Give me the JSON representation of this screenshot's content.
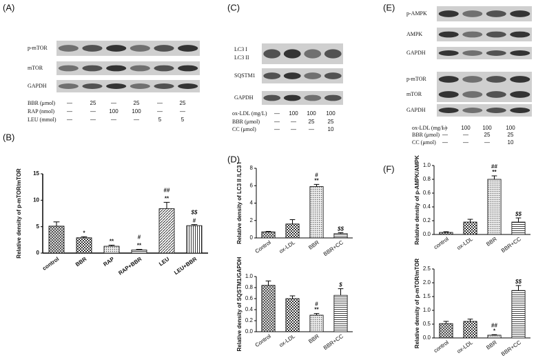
{
  "panel_labels": [
    "(A)",
    "(B)",
    "(C)",
    "(D)",
    "(E)",
    "(F)"
  ],
  "blots": [
    {
      "rows": [
        "p-mTOR",
        "mTOR",
        "GAPDH"
      ],
      "conditions": [
        {
          "label": "BBR (μmol)",
          "values": [
            "—",
            "25",
            "—",
            "25",
            "—",
            "25"
          ]
        },
        {
          "label": "RAP (nmol)",
          "values": [
            "—",
            "—",
            "100",
            "100",
            "—",
            "—"
          ]
        },
        {
          "label": "LEU (mmol)",
          "values": [
            "—",
            "—",
            "—",
            "—",
            "5",
            "5"
          ]
        }
      ]
    },
    {
      "rows": [
        "LC3 I",
        "LC3 II",
        "SQSTM1",
        "GAPDH"
      ],
      "conditions": [
        {
          "label": "ox-LDL (mg/L)",
          "values": [
            "—",
            "100",
            "100",
            "100"
          ]
        },
        {
          "label": "BBR (μmol)",
          "values": [
            "—",
            "—",
            "25",
            "25"
          ]
        },
        {
          "label": "CC (μmol)",
          "values": [
            "—",
            "—",
            "—",
            "10"
          ]
        }
      ]
    },
    {
      "rows": [
        "p-AMPK",
        "AMPK",
        "GAPDH",
        "p-mTOR",
        "mTOR",
        "GAPDH"
      ],
      "conditions": [
        {
          "label": "ox-LDL (mg/L)",
          "values": [
            "—",
            "100",
            "100",
            "100"
          ]
        },
        {
          "label": "BBR (μmol)",
          "values": [
            "—",
            "—",
            "25",
            "25"
          ]
        },
        {
          "label": "CC (μmol)",
          "values": [
            "—",
            "—",
            "—",
            "10"
          ]
        }
      ]
    }
  ],
  "chart_data": [
    {
      "type": "bar",
      "ylabel": "Relative density of p-mTOR/mTOR",
      "categories": [
        "control",
        "BBR",
        "RAP",
        "RAP+BBR",
        "LEU",
        "LEU+BBR"
      ],
      "values": [
        5.1,
        2.9,
        1.3,
        0.6,
        8.4,
        5.2
      ],
      "errors": [
        0.8,
        0.2,
        0.2,
        0.1,
        1.2,
        0.2
      ],
      "annotations": [
        null,
        [
          "*"
        ],
        [
          "**"
        ],
        [
          "#",
          "**"
        ],
        [
          "##",
          "**"
        ],
        [
          "$$",
          "#"
        ]
      ],
      "ylim": [
        0,
        15
      ],
      "yticks": [
        0,
        5,
        10,
        15
      ]
    },
    {
      "type": "bar",
      "ylabel": "Relative density of LC3 II /LC3 I",
      "categories": [
        "Control",
        "ox-LDL",
        "BBR",
        "BBR+CC"
      ],
      "values": [
        0.7,
        1.6,
        5.9,
        0.5
      ],
      "errors": [
        0.05,
        0.5,
        0.25,
        0.1
      ],
      "annotations": [
        null,
        null,
        [
          "#",
          "**"
        ],
        [
          "$$"
        ]
      ],
      "ylim": [
        0,
        8
      ],
      "yticks": [
        0,
        2,
        4,
        6,
        8
      ]
    },
    {
      "type": "bar",
      "ylabel": "Relative density of SQSTM1/GAPDH",
      "categories": [
        "Control",
        "ox-LDL",
        "BBR",
        "BBR+CC"
      ],
      "values": [
        0.84,
        0.6,
        0.3,
        0.66
      ],
      "errors": [
        0.08,
        0.05,
        0.03,
        0.12
      ],
      "annotations": [
        null,
        null,
        [
          "#",
          "**"
        ],
        [
          "$"
        ]
      ],
      "ylim": [
        0,
        1
      ],
      "yticks": [
        {
          "value": 0,
          "label": "0.0"
        },
        0.2,
        0.4,
        0.6,
        0.8,
        {
          "value": 1,
          "label": "1.0"
        }
      ]
    },
    {
      "type": "bar",
      "ylabel": "Relative density of p-AMPK/AMPK",
      "categories": [
        "control",
        "ox-LDL",
        "BBR",
        "BBR+CC"
      ],
      "values": [
        0.03,
        0.18,
        0.8,
        0.18
      ],
      "errors": [
        0.01,
        0.04,
        0.05,
        0.06
      ],
      "annotations": [
        null,
        null,
        [
          "##",
          "**"
        ],
        [
          "$$"
        ]
      ],
      "ylim": [
        0,
        1
      ],
      "yticks": [
        {
          "value": 0,
          "label": "0.0"
        },
        0.2,
        0.4,
        0.6,
        0.8,
        {
          "value": 1,
          "label": "1.0"
        }
      ]
    },
    {
      "type": "bar",
      "ylabel": "Relative density of p-mTOR/mTOR",
      "categories": [
        "control",
        "ox-LDL",
        "BBR",
        "BBR+CC"
      ],
      "values": [
        0.52,
        0.6,
        0.1,
        1.72
      ],
      "errors": [
        0.08,
        0.08,
        0.02,
        0.18
      ],
      "annotations": [
        null,
        null,
        [
          "##",
          "*"
        ],
        [
          "$$"
        ]
      ],
      "ylim": [
        0,
        2.5
      ],
      "yticks": [
        {
          "value": 0,
          "label": "0.0"
        },
        0.5,
        {
          "value": 1,
          "label": "1.0"
        },
        1.5,
        {
          "value": 2,
          "label": "2.0"
        },
        2.5
      ]
    }
  ]
}
